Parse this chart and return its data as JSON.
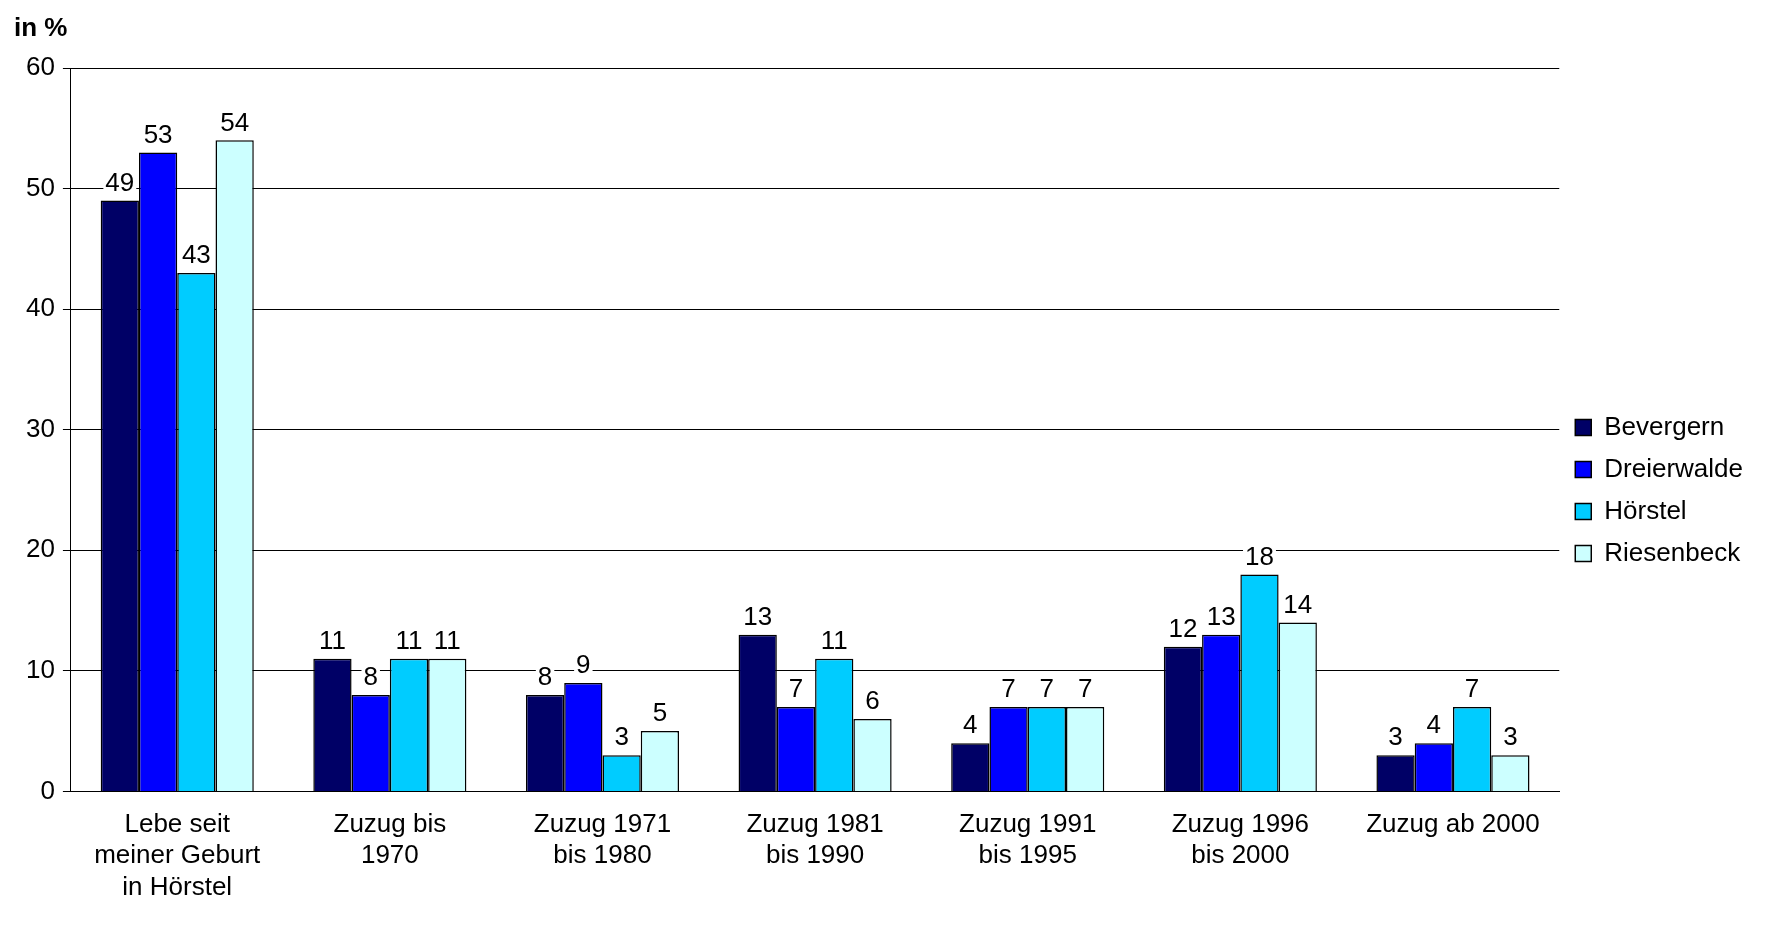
{
  "chart_data": {
    "type": "bar",
    "ylabel": "in %",
    "categories": [
      "Lebe seit meiner Geburt in Hörstel",
      "Zuzug bis 1970",
      "Zuzug 1971 bis 1980",
      "Zuzug 1981 bis 1990",
      "Zuzug 1991 bis 1995",
      "Zuzug 1996 bis 2000",
      "Zuzug ab 2000"
    ],
    "series": [
      {
        "name": "Bevergern",
        "color": "#000066",
        "values": [
          49,
          11,
          8,
          13,
          4,
          12,
          3
        ]
      },
      {
        "name": "Dreierwalde",
        "color": "#0000ff",
        "values": [
          53,
          8,
          9,
          7,
          7,
          13,
          4
        ]
      },
      {
        "name": "Hörstel",
        "color": "#00ccff",
        "values": [
          43,
          11,
          3,
          11,
          7,
          18,
          7
        ]
      },
      {
        "name": "Riesenbeck",
        "color": "#ccffff",
        "values": [
          54,
          11,
          5,
          6,
          7,
          14,
          3
        ]
      }
    ],
    "ylim": [
      0,
      60
    ],
    "yticks": [
      0,
      10,
      20,
      30,
      40,
      50,
      60
    ],
    "grid": "y",
    "legend": "right",
    "data_labels": true
  }
}
